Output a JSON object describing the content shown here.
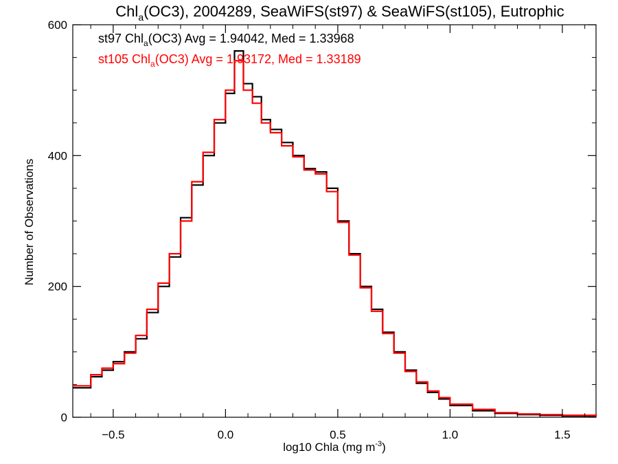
{
  "chart_data": {
    "type": "line",
    "title_parts": {
      "prefix": "Chl",
      "subscript": "a",
      "suffix": "(OC3), 2004289, SeaWiFS(st97) & SeaWiFS(st105), Eutrophic"
    },
    "xlabel": "log10 Chla (mg m",
    "xlabel_superscript": "-3",
    "xlabel_close": ")",
    "ylabel": "Number of Observations",
    "xlim": [
      -0.68,
      1.65
    ],
    "ylim": [
      0,
      600
    ],
    "x_ticks": [
      -0.5,
      0.0,
      0.5,
      1.0,
      1.5
    ],
    "x_tick_labels": [
      "−0.5",
      "0.0",
      "0.5",
      "1.0",
      "1.5"
    ],
    "y_ticks": [
      0,
      200,
      400,
      600
    ],
    "y_tick_labels": [
      "0",
      "200",
      "400",
      "600"
    ],
    "series_line_style": "step histogram",
    "annotations": [
      {
        "label_prefix": "st97 Chl",
        "label_sub": "a",
        "label_suffix": "(OC3) Avg = 1.94042, Med = 1.33968",
        "color": "#000000"
      },
      {
        "label_prefix": "st105 Chl",
        "label_sub": "a",
        "label_suffix": "(OC3) Avg = 1.93172, Med = 1.33189",
        "color": "#ff0000"
      }
    ],
    "series": [
      {
        "color": "#000000",
        "x": [
          -0.68,
          -0.6,
          -0.55,
          -0.5,
          -0.45,
          -0.4,
          -0.35,
          -0.3,
          -0.25,
          -0.2,
          -0.15,
          -0.1,
          -0.05,
          0.0,
          0.04,
          0.08,
          0.12,
          0.16,
          0.2,
          0.25,
          0.3,
          0.35,
          0.4,
          0.45,
          0.5,
          0.55,
          0.6,
          0.65,
          0.7,
          0.75,
          0.8,
          0.85,
          0.9,
          0.95,
          1.0,
          1.1,
          1.2,
          1.3,
          1.4,
          1.5,
          1.65
        ],
        "y": [
          45,
          62,
          72,
          85,
          100,
          120,
          160,
          200,
          245,
          305,
          355,
          400,
          450,
          495,
          560,
          510,
          490,
          455,
          440,
          420,
          400,
          380,
          375,
          350,
          300,
          250,
          200,
          165,
          130,
          100,
          72,
          52,
          38,
          28,
          18,
          10,
          6,
          4,
          3,
          2,
          1
        ]
      },
      {
        "color": "#ff0000",
        "x": [
          -0.68,
          -0.6,
          -0.55,
          -0.5,
          -0.45,
          -0.4,
          -0.35,
          -0.3,
          -0.25,
          -0.2,
          -0.15,
          -0.1,
          -0.05,
          0.0,
          0.04,
          0.08,
          0.12,
          0.16,
          0.2,
          0.25,
          0.3,
          0.35,
          0.4,
          0.45,
          0.5,
          0.55,
          0.6,
          0.65,
          0.7,
          0.75,
          0.8,
          0.85,
          0.9,
          0.95,
          1.0,
          1.1,
          1.2,
          1.3,
          1.4,
          1.5,
          1.65
        ],
        "y": [
          48,
          65,
          75,
          82,
          98,
          125,
          165,
          205,
          250,
          300,
          360,
          405,
          455,
          500,
          545,
          500,
          480,
          450,
          435,
          415,
          398,
          378,
          372,
          345,
          298,
          248,
          198,
          162,
          128,
          98,
          70,
          54,
          40,
          30,
          20,
          12,
          7,
          5,
          4,
          3,
          1
        ]
      }
    ]
  }
}
